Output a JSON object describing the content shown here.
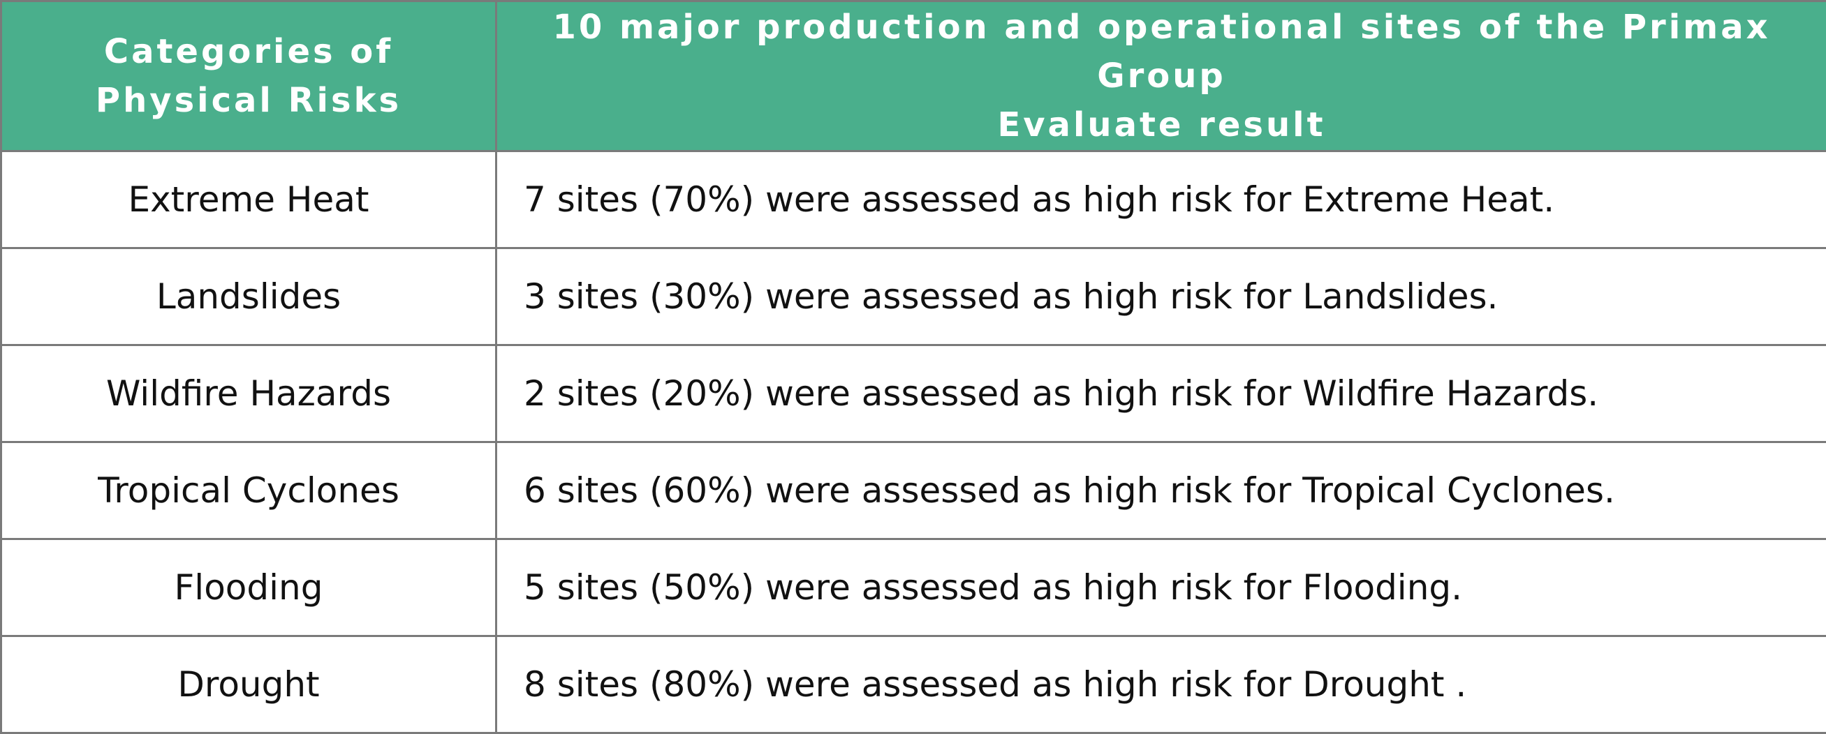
{
  "table": {
    "header": [
      [
        "Categories of",
        "Physical Risks"
      ],
      [
        "10 major production and operational sites of the Primax Group",
        "Evaluate result"
      ]
    ],
    "rows": [
      [
        "Extreme Heat",
        "7 sites (70%) were assessed as high risk for Extreme Heat."
      ],
      [
        "Landslides",
        "3 sites (30%) were assessed as high risk for Landslides."
      ],
      [
        "Wildfire Hazards",
        "2 sites (20%) were assessed as high risk for Wildfire Hazards."
      ],
      [
        "Tropical Cyclones",
        "6 sites (60%) were assessed as high risk for Tropical Cyclones."
      ],
      [
        "Flooding",
        "5 sites (50%) were assessed as high risk for Flooding."
      ],
      [
        "Drought",
        "8 sites (80%) were assessed as high risk for Drought ."
      ]
    ]
  }
}
